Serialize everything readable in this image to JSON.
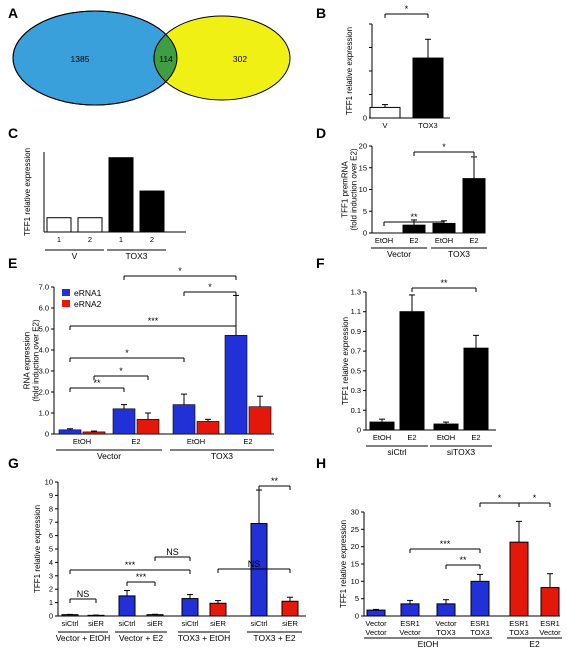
{
  "colors": {
    "blue": "#2230d8",
    "red": "#e3170a",
    "black": "#000000",
    "white": "#ffffff",
    "venn_left": "#3aa0dc",
    "venn_overlap": "#3f9e44",
    "venn_right": "#f0f014"
  },
  "chart_data": [
    {
      "panel": "A",
      "type": "venn",
      "sets": [
        {
          "only": 1385
        },
        {
          "only": 302
        }
      ],
      "overlap": 114
    },
    {
      "panel": "B",
      "type": "bar",
      "categories": [
        "V",
        "TOX3"
      ],
      "values": [
        0.45,
        2.55
      ],
      "errors": [
        0.12,
        0.8
      ],
      "fills": [
        "#ffffff",
        "#000000"
      ],
      "ylabel": "TFF1 relative expression",
      "ylim": [
        0,
        4
      ],
      "yticks": [
        "0",
        "",
        "",
        "",
        ""
      ],
      "significance": [
        {
          "from": 0,
          "to": 1,
          "label": "*"
        }
      ]
    },
    {
      "panel": "C",
      "type": "bar",
      "categories": [
        "1",
        "2",
        "1",
        "2"
      ],
      "values": [
        0.75,
        0.75,
        3.9,
        2.15
      ],
      "fills": [
        "#ffffff",
        "#ffffff",
        "#000000",
        "#000000"
      ],
      "groups": [
        {
          "label": "V",
          "from": 0,
          "to": 1
        },
        {
          "label": "TOX3",
          "from": 2,
          "to": 3
        }
      ],
      "ylabel": "TFF1 relative expression",
      "ylim": [
        0,
        4.2
      ]
    },
    {
      "panel": "D",
      "type": "bar",
      "categories": [
        "EtOH",
        "E2",
        "EtOH",
        "E2"
      ],
      "values": [
        0,
        1.8,
        2.2,
        12.5
      ],
      "errors": [
        0,
        1.2,
        0.6,
        5.0
      ],
      "fills": [
        "#000000",
        "#000000",
        "#000000",
        "#000000"
      ],
      "groups": [
        {
          "label": "Vector",
          "from": 0,
          "to": 1
        },
        {
          "label": "TOX3",
          "from": 2,
          "to": 3
        }
      ],
      "ylabel": "TFF1 premRNA\n(fold induction over E2)",
      "ylim": [
        0,
        20
      ],
      "yticks": [
        "0",
        "5",
        "10",
        "15",
        "20"
      ],
      "significance": [
        {
          "from": 0,
          "to": 2,
          "label": "**"
        },
        {
          "from": 1,
          "to": 3,
          "label": "*"
        }
      ]
    },
    {
      "panel": "E",
      "type": "bar",
      "categories": [
        "EtOH",
        "E2",
        "EtOH",
        "E2"
      ],
      "series": [
        {
          "name": "eRNA1",
          "values": [
            0.2,
            1.2,
            1.4,
            4.7
          ],
          "errors": [
            0.05,
            0.2,
            0.5,
            1.9
          ]
        },
        {
          "name": "eRNA2",
          "values": [
            0.1,
            0.7,
            0.6,
            1.3
          ],
          "errors": [
            0.04,
            0.3,
            0.1,
            0.5
          ]
        }
      ],
      "groups": [
        {
          "label": "Vector",
          "from": 0,
          "to": 1
        },
        {
          "label": "TOX3",
          "from": 2,
          "to": 3
        }
      ],
      "ylabel": "RNA expression\n(fold induction over E2)",
      "ylim": [
        0,
        7
      ],
      "yticks": [
        "0",
        "1.0",
        "2.0",
        "3.0",
        "4.0",
        "5.0",
        "6.0",
        "7.0"
      ],
      "significance": [
        {
          "from": [
            0,
            0
          ],
          "to": [
            1,
            0
          ],
          "label": "**"
        },
        {
          "from": [
            0,
            1
          ],
          "to": [
            1,
            1
          ],
          "label": "*"
        },
        {
          "from": [
            0,
            0
          ],
          "to": [
            2,
            0
          ],
          "label": "*"
        },
        {
          "from": [
            0,
            0
          ],
          "to": [
            3,
            0
          ],
          "label": "***"
        },
        {
          "from": [
            2,
            0
          ],
          "to": [
            3,
            0
          ],
          "label": "*"
        },
        {
          "from": [
            1,
            0
          ],
          "to": [
            3,
            0
          ],
          "label": "*"
        }
      ]
    },
    {
      "panel": "F",
      "type": "bar",
      "categories": [
        "EtOH",
        "E2",
        "EtOH",
        "E2"
      ],
      "values": [
        0.08,
        1.2,
        0.06,
        0.83
      ],
      "errors": [
        0.03,
        0.17,
        0.02,
        0.13
      ],
      "fills": [
        "#000000",
        "#000000",
        "#000000",
        "#000000"
      ],
      "groups": [
        {
          "label": "siCtrl",
          "from": 0,
          "to": 1
        },
        {
          "label": "siTOX3",
          "from": 2,
          "to": 3
        }
      ],
      "ylabel": "TFF1 relative expression",
      "ylim": [
        0,
        1.4
      ],
      "yticks": [
        "0",
        "0.1",
        "0.3",
        "0.5",
        "0.7",
        "0.9",
        "1.1",
        "1.3"
      ],
      "significance": [
        {
          "from": 1,
          "to": 3,
          "label": "**"
        }
      ]
    },
    {
      "panel": "G",
      "type": "bar",
      "categories": [
        "siCtrl",
        "siER",
        "siCtrl",
        "siER",
        "siCtrl",
        "siER",
        "siCtrl",
        "siER"
      ],
      "values": [
        0.1,
        0.05,
        1.5,
        0.1,
        1.3,
        0.95,
        6.9,
        1.1
      ],
      "errors": [
        0.02,
        0.02,
        0.4,
        0.03,
        0.3,
        0.2,
        2.5,
        0.3
      ],
      "fills": [
        "#2230d8",
        "#e3170a",
        "#2230d8",
        "#e3170a",
        "#2230d8",
        "#e3170a",
        "#2230d8",
        "#e3170a"
      ],
      "groups": [
        {
          "label": "Vector + EtOH",
          "from": 0,
          "to": 1
        },
        {
          "label": "Vector + E2",
          "from": 2,
          "to": 3
        },
        {
          "label": "TOX3 + EtOH",
          "from": 4,
          "to": 5
        },
        {
          "label": "TOX3 + E2",
          "from": 6,
          "to": 7
        }
      ],
      "ylabel": "TFF1  relative expression",
      "ylim": [
        0,
        10
      ],
      "yticks": [
        "0",
        "1",
        "2",
        "3",
        "4",
        "5",
        "6",
        "7",
        "8",
        "9",
        "10"
      ],
      "significance": [
        {
          "from": 0,
          "to": 1,
          "label": "NS"
        },
        {
          "from": 2,
          "to": 3,
          "label": "***"
        },
        {
          "from": 0,
          "to": 4,
          "label": "***"
        },
        {
          "from": 3,
          "to": 4,
          "label": "NS"
        },
        {
          "from": 5,
          "to": 7,
          "label": "NS"
        },
        {
          "from": 6,
          "to": 7,
          "label": "**"
        }
      ]
    },
    {
      "panel": "H",
      "type": "bar",
      "categories": [
        "Vector\nVector",
        "ESR1\nVector",
        "Vector\nTOX3",
        "ESR1\nTOX3",
        "ESR1\nTOX3",
        "ESR1\nVector"
      ],
      "values": [
        1.7,
        3.5,
        3.5,
        10,
        21.3,
        8.2
      ],
      "errors": [
        0.2,
        1.0,
        1.2,
        2.0,
        6.0,
        4.0
      ],
      "fills": [
        "#2230d8",
        "#2230d8",
        "#2230d8",
        "#2230d8",
        "#e3170a",
        "#e3170a"
      ],
      "groups": [
        {
          "label": "EtOH",
          "from": 0,
          "to": 3
        },
        {
          "label": "E2",
          "from": 4,
          "to": 5
        }
      ],
      "ylabel": "TFF1  relative expression",
      "ylim": [
        0,
        30
      ],
      "yticks": [
        "0",
        "5",
        "10",
        "15",
        "20",
        "25",
        "30"
      ],
      "significance": [
        {
          "from": 1,
          "to": 3,
          "label": "***"
        },
        {
          "from": 2,
          "to": 3,
          "label": "**"
        },
        {
          "from": 3,
          "to": 4,
          "label": "*"
        },
        {
          "from": 4,
          "to": 5,
          "label": "*"
        }
      ]
    }
  ]
}
